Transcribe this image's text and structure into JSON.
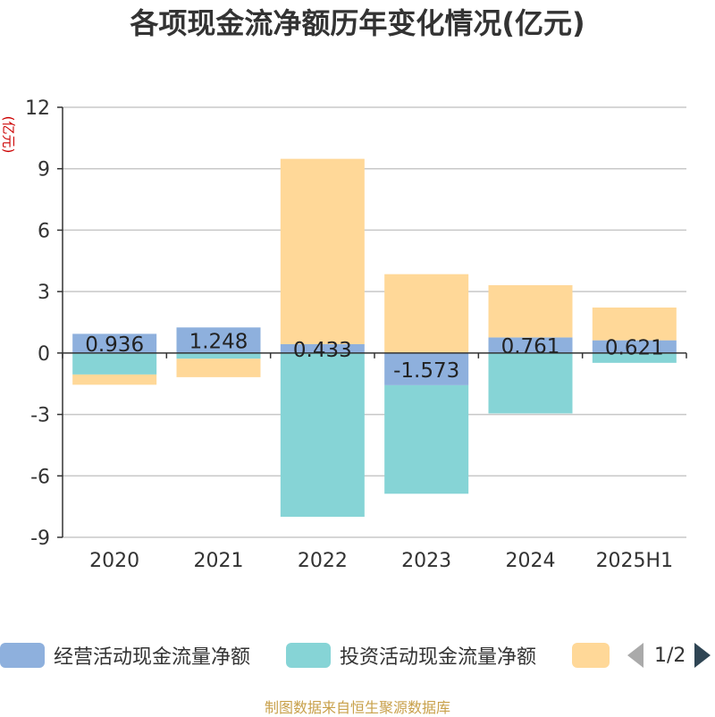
{
  "header": {
    "title": "各项现金流净额历年变化情况(亿元)"
  },
  "axis_unit": "(亿元)",
  "legend": {
    "items": [
      {
        "label": "经营活动现金流量净额",
        "color": "#8eb0dd"
      },
      {
        "label": "投资活动现金流量净额",
        "color": "#86d4d6"
      },
      {
        "label": "",
        "color": "#ffd898"
      }
    ],
    "page": "1/2"
  },
  "source": "制图数据来自恒生聚源数据库",
  "chart_data": {
    "type": "bar",
    "stacked": true,
    "categories": [
      "2020",
      "2021",
      "2022",
      "2023",
      "2024",
      "2025H1"
    ],
    "series": [
      {
        "name": "经营活动现金流量净额",
        "color": "#8eb0dd",
        "values": [
          0.936,
          1.248,
          0.433,
          -1.573,
          0.761,
          0.621
        ],
        "labels": [
          "0.936",
          "1.248",
          "0.433",
          "-1.573",
          "0.761",
          "0.621"
        ]
      },
      {
        "name": "投资活动现金流量净额",
        "color": "#86d4d6",
        "values": [
          -1.05,
          -0.28,
          -8.0,
          -5.3,
          -2.95,
          -0.48
        ]
      },
      {
        "name": "",
        "color": "#ffd898",
        "values": [
          -0.5,
          -0.9,
          9.05,
          3.85,
          2.55,
          1.6
        ]
      }
    ],
    "ylim": [
      -9,
      12
    ],
    "yticks": [
      -9,
      -6,
      -3,
      0,
      3,
      6,
      9,
      12
    ],
    "grid": true
  }
}
